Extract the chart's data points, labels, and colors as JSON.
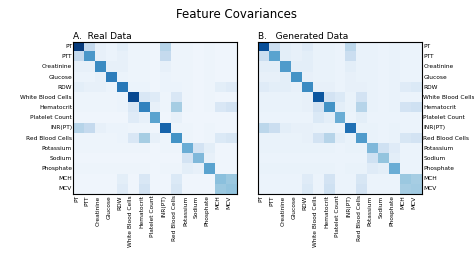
{
  "title": "Feature Covariances",
  "subtitle_A": "A.  Real Data",
  "subtitle_B": "B.   Generated Data",
  "features": [
    "PT",
    "PTT",
    "Creatinine",
    "Glucose",
    "RDW",
    "White Blood Cells",
    "Hematocrit",
    "Platelet Count",
    "INR(PT)",
    "Red Blood Cells",
    "Potassium",
    "Sodium",
    "Phosphate",
    "MCH",
    "MCV"
  ],
  "n": 15,
  "colormap": "Blues",
  "background_color": "#ffffff",
  "fig_background": "#ffffff",
  "title_fontsize": 8.5,
  "label_fontsize": 4.2,
  "subtitle_fontsize": 6.5,
  "real_matrix": [
    [
      0.95,
      0.25,
      0.08,
      0.06,
      0.1,
      0.05,
      0.05,
      0.04,
      0.3,
      0.05,
      0.05,
      0.04,
      0.05,
      0.04,
      0.04
    ],
    [
      0.25,
      0.6,
      0.08,
      0.06,
      0.08,
      0.05,
      0.05,
      0.04,
      0.25,
      0.05,
      0.05,
      0.04,
      0.05,
      0.04,
      0.04
    ],
    [
      0.08,
      0.08,
      0.65,
      0.08,
      0.08,
      0.05,
      0.05,
      0.04,
      0.08,
      0.05,
      0.05,
      0.04,
      0.05,
      0.04,
      0.04
    ],
    [
      0.06,
      0.06,
      0.08,
      0.7,
      0.06,
      0.05,
      0.05,
      0.04,
      0.06,
      0.05,
      0.05,
      0.04,
      0.05,
      0.04,
      0.04
    ],
    [
      0.1,
      0.08,
      0.08,
      0.06,
      0.72,
      0.06,
      0.06,
      0.04,
      0.06,
      0.06,
      0.05,
      0.04,
      0.05,
      0.1,
      0.12
    ],
    [
      0.05,
      0.05,
      0.05,
      0.05,
      0.06,
      0.9,
      0.15,
      0.12,
      0.05,
      0.15,
      0.05,
      0.04,
      0.05,
      0.04,
      0.04
    ],
    [
      0.05,
      0.05,
      0.05,
      0.05,
      0.06,
      0.15,
      0.68,
      0.08,
      0.05,
      0.35,
      0.05,
      0.04,
      0.05,
      0.15,
      0.18
    ],
    [
      0.04,
      0.04,
      0.04,
      0.04,
      0.04,
      0.12,
      0.08,
      0.55,
      0.04,
      0.08,
      0.04,
      0.04,
      0.04,
      0.04,
      0.04
    ],
    [
      0.3,
      0.25,
      0.08,
      0.06,
      0.06,
      0.05,
      0.05,
      0.04,
      0.8,
      0.05,
      0.05,
      0.04,
      0.05,
      0.04,
      0.04
    ],
    [
      0.05,
      0.05,
      0.05,
      0.05,
      0.06,
      0.15,
      0.35,
      0.08,
      0.05,
      0.62,
      0.05,
      0.04,
      0.05,
      0.14,
      0.16
    ],
    [
      0.05,
      0.05,
      0.05,
      0.05,
      0.05,
      0.05,
      0.05,
      0.04,
      0.05,
      0.05,
      0.5,
      0.18,
      0.1,
      0.04,
      0.04
    ],
    [
      0.04,
      0.04,
      0.04,
      0.04,
      0.04,
      0.04,
      0.04,
      0.04,
      0.04,
      0.04,
      0.18,
      0.45,
      0.08,
      0.04,
      0.04
    ],
    [
      0.05,
      0.05,
      0.05,
      0.05,
      0.05,
      0.05,
      0.05,
      0.04,
      0.05,
      0.05,
      0.1,
      0.08,
      0.55,
      0.04,
      0.04
    ],
    [
      0.04,
      0.04,
      0.04,
      0.04,
      0.1,
      0.04,
      0.15,
      0.04,
      0.04,
      0.14,
      0.04,
      0.04,
      0.04,
      0.42,
      0.38
    ],
    [
      0.04,
      0.04,
      0.04,
      0.04,
      0.12,
      0.04,
      0.18,
      0.04,
      0.04,
      0.16,
      0.04,
      0.04,
      0.04,
      0.38,
      0.4
    ]
  ],
  "gen_matrix": [
    [
      0.88,
      0.22,
      0.1,
      0.08,
      0.12,
      0.07,
      0.07,
      0.06,
      0.28,
      0.07,
      0.07,
      0.06,
      0.07,
      0.06,
      0.06
    ],
    [
      0.22,
      0.55,
      0.1,
      0.08,
      0.1,
      0.07,
      0.07,
      0.06,
      0.22,
      0.07,
      0.07,
      0.06,
      0.07,
      0.06,
      0.06
    ],
    [
      0.1,
      0.1,
      0.58,
      0.1,
      0.1,
      0.07,
      0.07,
      0.06,
      0.1,
      0.07,
      0.07,
      0.06,
      0.07,
      0.06,
      0.06
    ],
    [
      0.08,
      0.08,
      0.1,
      0.62,
      0.08,
      0.07,
      0.07,
      0.06,
      0.08,
      0.07,
      0.07,
      0.06,
      0.07,
      0.06,
      0.06
    ],
    [
      0.12,
      0.1,
      0.1,
      0.08,
      0.65,
      0.08,
      0.08,
      0.06,
      0.08,
      0.08,
      0.07,
      0.06,
      0.07,
      0.12,
      0.14
    ],
    [
      0.07,
      0.07,
      0.07,
      0.07,
      0.08,
      0.85,
      0.18,
      0.14,
      0.07,
      0.18,
      0.07,
      0.06,
      0.07,
      0.06,
      0.06
    ],
    [
      0.07,
      0.07,
      0.07,
      0.07,
      0.08,
      0.18,
      0.62,
      0.1,
      0.07,
      0.3,
      0.07,
      0.06,
      0.07,
      0.18,
      0.2
    ],
    [
      0.06,
      0.06,
      0.06,
      0.06,
      0.06,
      0.14,
      0.1,
      0.5,
      0.06,
      0.1,
      0.06,
      0.06,
      0.06,
      0.06,
      0.06
    ],
    [
      0.28,
      0.22,
      0.1,
      0.08,
      0.08,
      0.07,
      0.07,
      0.06,
      0.75,
      0.07,
      0.07,
      0.06,
      0.07,
      0.06,
      0.06
    ],
    [
      0.07,
      0.07,
      0.07,
      0.07,
      0.08,
      0.18,
      0.3,
      0.1,
      0.07,
      0.58,
      0.07,
      0.06,
      0.07,
      0.16,
      0.18
    ],
    [
      0.07,
      0.07,
      0.07,
      0.07,
      0.07,
      0.07,
      0.07,
      0.06,
      0.07,
      0.07,
      0.45,
      0.2,
      0.12,
      0.06,
      0.06
    ],
    [
      0.06,
      0.06,
      0.06,
      0.06,
      0.06,
      0.06,
      0.06,
      0.06,
      0.06,
      0.06,
      0.2,
      0.4,
      0.1,
      0.06,
      0.06
    ],
    [
      0.07,
      0.07,
      0.07,
      0.07,
      0.07,
      0.07,
      0.07,
      0.06,
      0.07,
      0.07,
      0.12,
      0.1,
      0.5,
      0.06,
      0.06
    ],
    [
      0.06,
      0.06,
      0.06,
      0.06,
      0.12,
      0.06,
      0.18,
      0.06,
      0.06,
      0.16,
      0.06,
      0.06,
      0.06,
      0.38,
      0.35
    ],
    [
      0.06,
      0.06,
      0.06,
      0.06,
      0.14,
      0.06,
      0.2,
      0.06,
      0.06,
      0.18,
      0.06,
      0.06,
      0.06,
      0.35,
      0.36
    ]
  ]
}
